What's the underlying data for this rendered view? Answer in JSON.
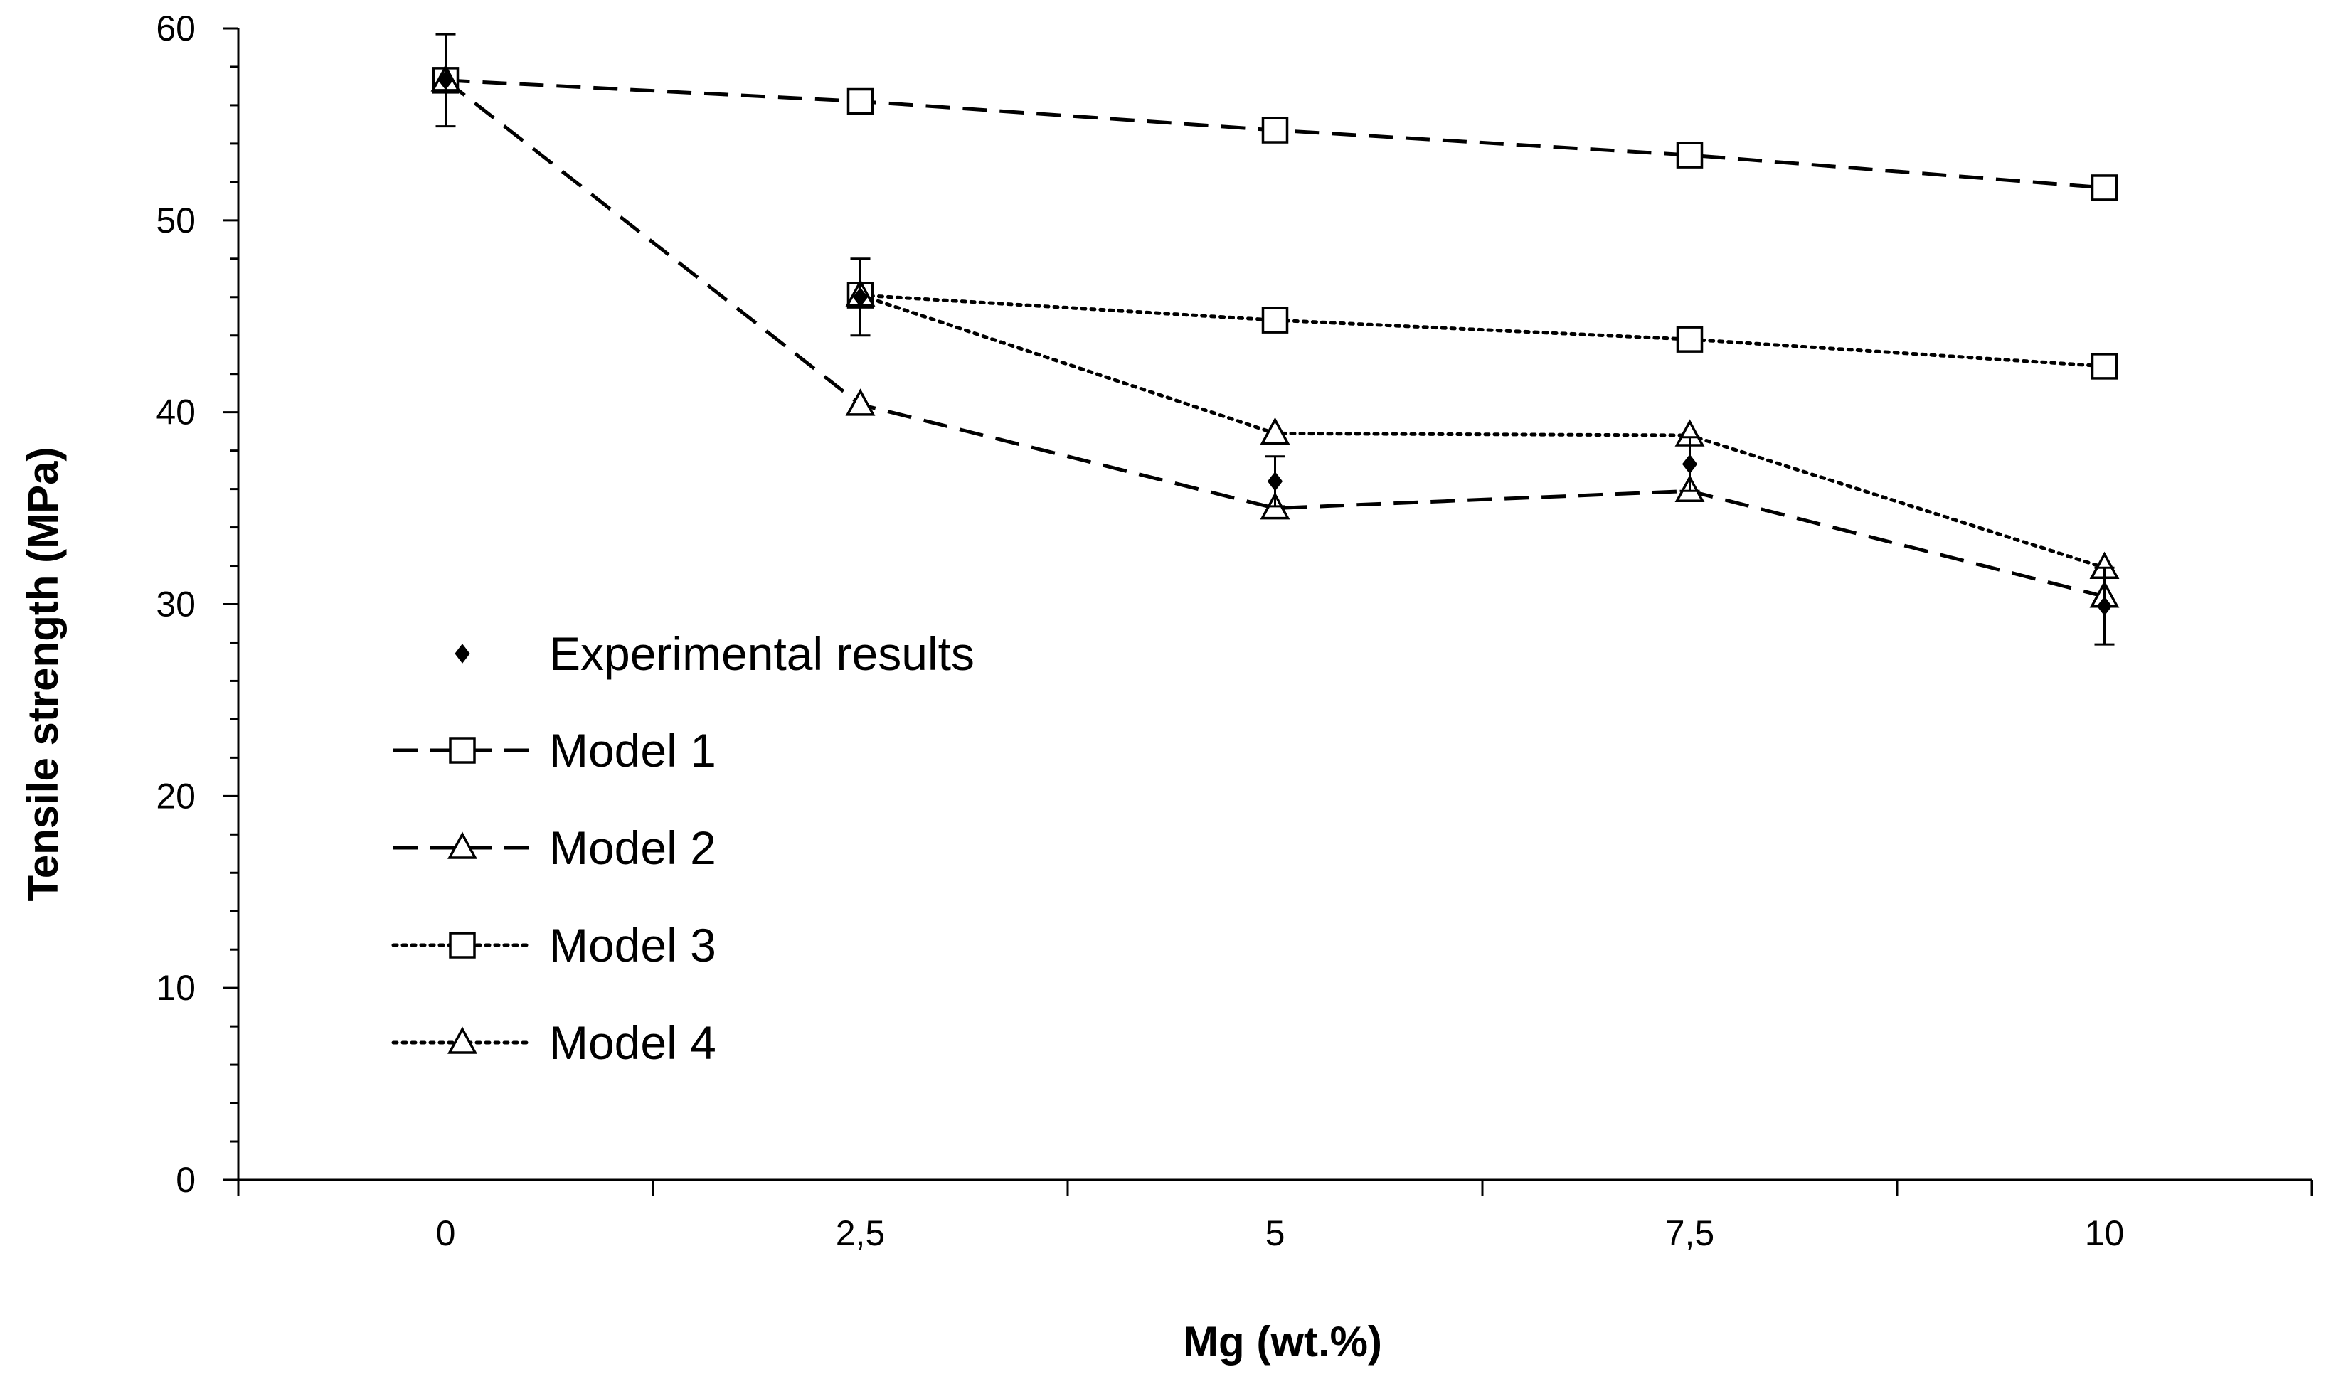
{
  "chart_data": {
    "type": "line",
    "title": "",
    "xlabel": "Mg (wt.%)",
    "ylabel": "Tensile strength (MPa)",
    "categories": [
      "0",
      "2,5",
      "5",
      "7,5",
      "10"
    ],
    "x": [
      0,
      2.5,
      5,
      7.5,
      10
    ],
    "xlim": [
      -1.25,
      11.25
    ],
    "ylim": [
      0,
      60
    ],
    "yticks": [
      0,
      10,
      20,
      30,
      40,
      50,
      60
    ],
    "ytick_labels": [
      "0",
      "10",
      "20",
      "30",
      "40",
      "50",
      "60"
    ],
    "grid": false,
    "legend_position": "left-middle",
    "series": [
      {
        "name": "Experimental results",
        "style": "markers-only",
        "marker": "filled-diamond",
        "values": [
          57.3,
          46.0,
          36.4,
          37.3,
          29.9
        ],
        "error": [
          2.4,
          2.0,
          1.3,
          1.4,
          2.0
        ]
      },
      {
        "name": "Model 1",
        "style": "dashed",
        "marker": "open-square",
        "values": [
          57.3,
          56.2,
          54.7,
          53.4,
          51.7
        ]
      },
      {
        "name": "Model 2",
        "style": "dashed",
        "marker": "open-triangle",
        "values": [
          57.3,
          40.4,
          35.0,
          35.9,
          30.4
        ]
      },
      {
        "name": "Model 3",
        "style": "dotted",
        "marker": "open-square",
        "values": [
          null,
          46.1,
          44.8,
          43.8,
          42.4
        ]
      },
      {
        "name": "Model 4",
        "style": "dotted",
        "marker": "open-triangle",
        "values": [
          null,
          46.1,
          38.9,
          38.8,
          31.9
        ]
      }
    ]
  }
}
